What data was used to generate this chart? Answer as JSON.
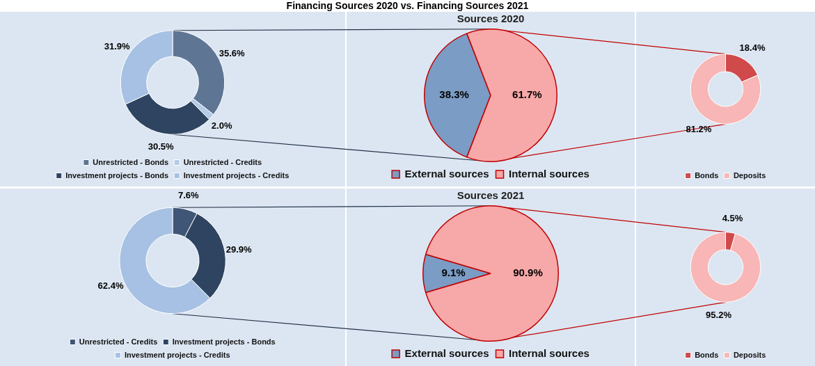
{
  "chart_data": [
    {
      "type": "donut",
      "categories": [
        "Unrestricted - Bonds",
        "Unrestricted - Credits",
        "Investment projects - Bonds",
        "Investment projects - Credits"
      ],
      "values": [
        35.6,
        2.0,
        30.5,
        31.9
      ],
      "colors": [
        "#5e7594",
        "#b4cbe6",
        "#2e4461",
        "#a6c1e3"
      ],
      "value_labels": [
        "35.6%",
        "2.0%",
        "30.5%",
        "31.9%"
      ],
      "legend": "bottom"
    },
    {
      "type": "pie",
      "title": "Financing Sources 2020 vs. Financing Sources 2021",
      "subtitle": "Sources 2020",
      "categories": [
        "External sources",
        "Internal sources"
      ],
      "values": [
        38.3,
        61.7
      ],
      "colors": [
        "#7b9cc4",
        "#f7a8a8"
      ],
      "value_labels": [
        "38.3%",
        "61.7%"
      ],
      "legend": "bottom"
    },
    {
      "type": "donut",
      "categories": [
        "Bonds",
        "Deposits"
      ],
      "values": [
        18.4,
        81.2
      ],
      "colors": [
        "#d0494b",
        "#f8b6b6"
      ],
      "value_labels": [
        "18.4%",
        "81.2%"
      ],
      "legend": "bottom"
    },
    {
      "type": "donut",
      "categories": [
        "Unrestricted - Credits",
        "Investment projects - Bonds",
        "Investment projects - Credits"
      ],
      "values": [
        7.6,
        29.9,
        62.4
      ],
      "colors": [
        "#3f5676",
        "#2e4461",
        "#a6c1e3"
      ],
      "value_labels": [
        "7.6%",
        "29.9%",
        "62.4%"
      ],
      "legend": "bottom"
    },
    {
      "type": "pie",
      "title": "Sources 2021",
      "categories": [
        "External sources",
        "Internal sources"
      ],
      "values": [
        9.1,
        90.9
      ],
      "colors": [
        "#7b9cc4",
        "#f7a8a8"
      ],
      "value_labels": [
        "9.1%",
        "90.9%"
      ],
      "legend": "bottom"
    },
    {
      "type": "donut",
      "categories": [
        "Bonds",
        "Deposits"
      ],
      "values": [
        4.5,
        95.2
      ],
      "colors": [
        "#d0494b",
        "#f8b6b6"
      ],
      "value_labels": [
        "4.5%",
        "95.2%"
      ],
      "legend": "bottom"
    }
  ]
}
